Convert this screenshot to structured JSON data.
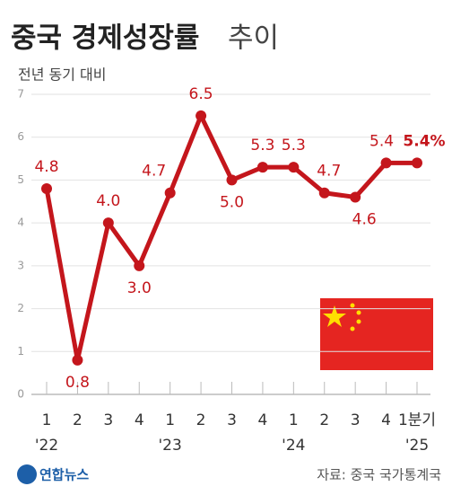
{
  "chart_data": {
    "type": "line",
    "title": "중국 경제성장률",
    "title_light": "추이",
    "subtitle": "전년 동기 대비",
    "source": "자료: 중국 국가통계국",
    "logo": "연합뉴스",
    "categories": [
      "1",
      "2",
      "3",
      "4",
      "1",
      "2",
      "3",
      "4",
      "1",
      "2",
      "3",
      "4",
      "1분기"
    ],
    "year_labels": [
      "'22",
      null,
      null,
      null,
      "'23",
      null,
      null,
      null,
      "'24",
      null,
      null,
      null,
      "'25"
    ],
    "values": [
      4.8,
      0.8,
      4.0,
      3.0,
      4.7,
      6.5,
      5.0,
      5.3,
      5.3,
      4.7,
      4.6,
      5.4,
      5.4
    ],
    "value_labels": [
      "4.8",
      "0.8",
      "4.0",
      "3.0",
      "4.7",
      "6.5",
      "5.0",
      "5.3",
      "5.3",
      "4.7",
      "4.6",
      "5.4",
      "5.4%"
    ],
    "color": "#c4161c",
    "ylim": [
      0,
      7
    ],
    "yticks": [
      0,
      1,
      2,
      3,
      4,
      5,
      6,
      7
    ],
    "grid": true
  }
}
